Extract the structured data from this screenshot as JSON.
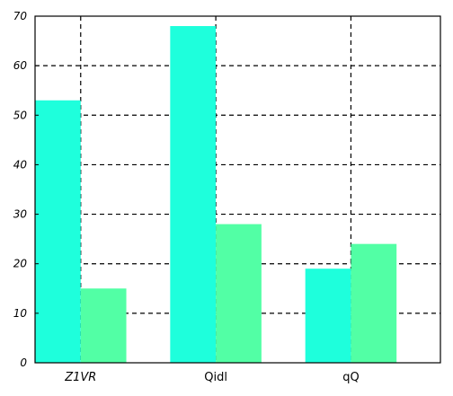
{
  "colors": {
    "series_1": "#1effdc",
    "series_2": "#52ffa5",
    "grid": "#000000",
    "background": "#ffffff"
  },
  "chart_data": {
    "type": "bar",
    "categories": [
      "Z1VR",
      "Qidl",
      "qQ"
    ],
    "category_italic": [
      true,
      false,
      false
    ],
    "series": [
      {
        "values": [
          53,
          68,
          19
        ]
      },
      {
        "values": [
          15,
          28,
          24
        ]
      }
    ],
    "title": "",
    "xlabel": "",
    "ylabel": "",
    "ylim": [
      0,
      70
    ],
    "yticks": [
      0,
      10,
      20,
      30,
      40,
      50,
      60,
      70
    ],
    "grid": true,
    "grid_style": "dashed",
    "legend": "none"
  }
}
